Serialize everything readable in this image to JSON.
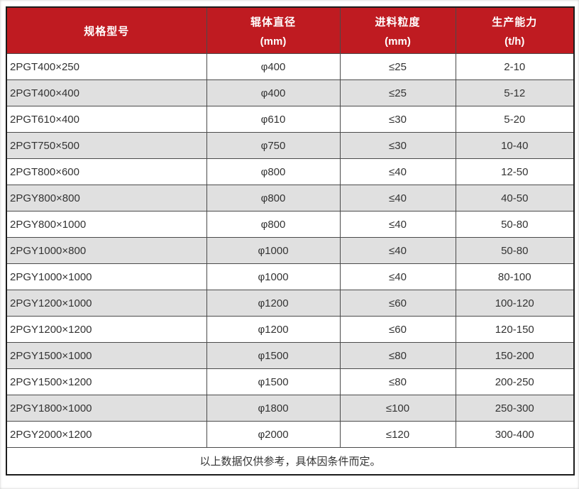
{
  "table": {
    "columns": [
      {
        "name": "model",
        "line1": "规格型号",
        "line2": ""
      },
      {
        "name": "roller-diameter",
        "line1": "辊体直径",
        "line2": "(mm)"
      },
      {
        "name": "feed-size",
        "line1": "进料粒度",
        "line2": "(mm)"
      },
      {
        "name": "capacity",
        "line1": "生产能力",
        "line2": "(t/h)"
      }
    ],
    "rows": [
      [
        "2PGT400×250",
        "φ400",
        "≤25",
        "2-10"
      ],
      [
        "2PGT400×400",
        "φ400",
        "≤25",
        "5-12"
      ],
      [
        "2PGT610×400",
        "φ610",
        "≤30",
        "5-20"
      ],
      [
        "2PGT750×500",
        "φ750",
        "≤30",
        "10-40"
      ],
      [
        "2PGT800×600",
        "φ800",
        "≤40",
        "12-50"
      ],
      [
        "2PGY800×800",
        "φ800",
        "≤40",
        "40-50"
      ],
      [
        "2PGY800×1000",
        "φ800",
        "≤40",
        "50-80"
      ],
      [
        "2PGY1000×800",
        "φ1000",
        "≤40",
        "50-80"
      ],
      [
        "2PGY1000×1000",
        "φ1000",
        "≤40",
        "80-100"
      ],
      [
        "2PGY1200×1000",
        "φ1200",
        "≤60",
        "100-120"
      ],
      [
        "2PGY1200×1200",
        "φ1200",
        "≤60",
        "120-150"
      ],
      [
        "2PGY1500×1000",
        "φ1500",
        "≤80",
        "150-200"
      ],
      [
        "2PGY1500×1200",
        "φ1500",
        "≤80",
        "200-250"
      ],
      [
        "2PGY1800×1000",
        "φ1800",
        "≤100",
        "250-300"
      ],
      [
        "2PGY2000×1200",
        "φ2000",
        "≤120",
        "300-400"
      ]
    ],
    "footnote": "以上数据仅供参考，具体因条件而定。"
  },
  "colors": {
    "header_bg": "#bf1b21",
    "header_text": "#ffffff",
    "stripe_bg": "#e0e0e0",
    "text": "#333333",
    "border_outer": "#1c1c1c",
    "border_inner": "#4a4a4a"
  }
}
